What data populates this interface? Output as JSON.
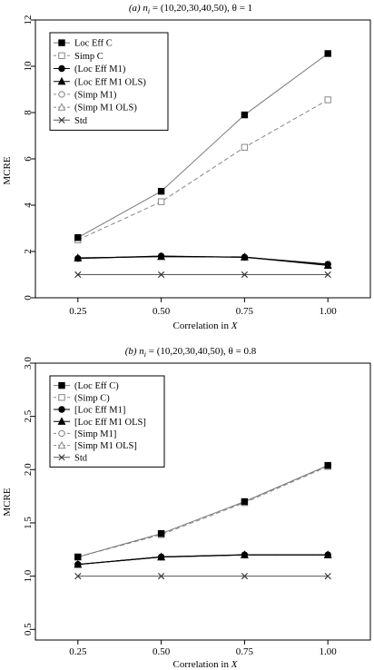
{
  "chart_data": [
    {
      "type": "line",
      "title_main": "(a) n",
      "title_sub": "i",
      "title_tail": " = (10,20,30,40,50), θ = 1",
      "xlabel_main": "Correlation in ",
      "xlabel_var": "X",
      "ylabel": "MCRE",
      "x": [
        0.25,
        0.5,
        0.75,
        1.0
      ],
      "xticks": [
        "0.25",
        "0.50",
        "0.75",
        "1.00"
      ],
      "ylim": [
        0,
        12
      ],
      "yticks": [
        0,
        2,
        4,
        6,
        8,
        10,
        12
      ],
      "legend_position": "top-left",
      "series": [
        {
          "name": "Loc Eff C",
          "values": [
            2.6,
            4.6,
            7.9,
            10.55
          ],
          "marker": "square-filled",
          "dash": "solid",
          "color": "#777777"
        },
        {
          "name": "Simp C",
          "values": [
            2.5,
            4.15,
            6.5,
            8.55
          ],
          "marker": "square-open",
          "dash": "dashed",
          "color": "#888888"
        },
        {
          "name": "(Loc Eff M1)",
          "values": [
            1.7,
            1.8,
            1.75,
            1.45
          ],
          "marker": "circle-filled",
          "dash": "solid",
          "color": "#000000"
        },
        {
          "name": "(Loc Eff M1 OLS)",
          "values": [
            1.72,
            1.78,
            1.76,
            1.4
          ],
          "marker": "triangle-filled",
          "dash": "solid",
          "color": "#000000"
        },
        {
          "name": "(Simp M1)",
          "values": [
            1.7,
            1.8,
            1.75,
            1.45
          ],
          "marker": "circle-open",
          "dash": "dashed",
          "color": "#888888"
        },
        {
          "name": "(Simp M1 OLS)",
          "values": [
            1.72,
            1.78,
            1.76,
            1.4
          ],
          "marker": "triangle-open",
          "dash": "dashed",
          "color": "#888888"
        },
        {
          "name": "Std",
          "values": [
            1.0,
            1.0,
            1.0,
            1.0
          ],
          "marker": "cross",
          "dash": "solid",
          "color": "#555555"
        }
      ]
    },
    {
      "type": "line",
      "title_main": "(b) n",
      "title_sub": "i",
      "title_tail": " = (10,20,30,40,50), θ = 0.8",
      "xlabel_main": "Correlation in ",
      "xlabel_var": "X",
      "ylabel": "MCRE",
      "x": [
        0.25,
        0.5,
        0.75,
        1.0
      ],
      "xticks": [
        "0.25",
        "0.50",
        "0.75",
        "1.00"
      ],
      "ylim": [
        0.4,
        3.0
      ],
      "yticks": [
        0.5,
        1.0,
        1.5,
        2.0,
        2.5,
        3.0
      ],
      "ytick_labels": [
        "0.5",
        "1.0",
        "1.5",
        "2.0",
        "2.5",
        "3.0"
      ],
      "legend_position": "top-left",
      "series": [
        {
          "name": "(Loc Eff C)",
          "values": [
            1.18,
            1.4,
            1.7,
            2.04
          ],
          "marker": "square-filled",
          "dash": "solid",
          "color": "#777777"
        },
        {
          "name": "(Simp C)",
          "values": [
            1.18,
            1.39,
            1.69,
            2.03
          ],
          "marker": "square-open",
          "dash": "dashed",
          "color": "#888888"
        },
        {
          "name": "[Loc Eff M1]",
          "values": [
            1.11,
            1.18,
            1.2,
            1.2
          ],
          "marker": "circle-filled",
          "dash": "solid",
          "color": "#000000"
        },
        {
          "name": "[Loc Eff M1 OLS]",
          "values": [
            1.11,
            1.18,
            1.2,
            1.2
          ],
          "marker": "triangle-filled",
          "dash": "solid",
          "color": "#000000"
        },
        {
          "name": "[Simp M1]",
          "values": [
            1.11,
            1.18,
            1.2,
            1.2
          ],
          "marker": "circle-open",
          "dash": "dashed",
          "color": "#888888"
        },
        {
          "name": "[Simp M1 OLS]",
          "values": [
            1.11,
            1.18,
            1.2,
            1.2
          ],
          "marker": "triangle-open",
          "dash": "dashed",
          "color": "#888888"
        },
        {
          "name": "Std",
          "values": [
            1.0,
            1.0,
            1.0,
            1.0
          ],
          "marker": "cross",
          "dash": "solid",
          "color": "#555555"
        }
      ]
    }
  ]
}
